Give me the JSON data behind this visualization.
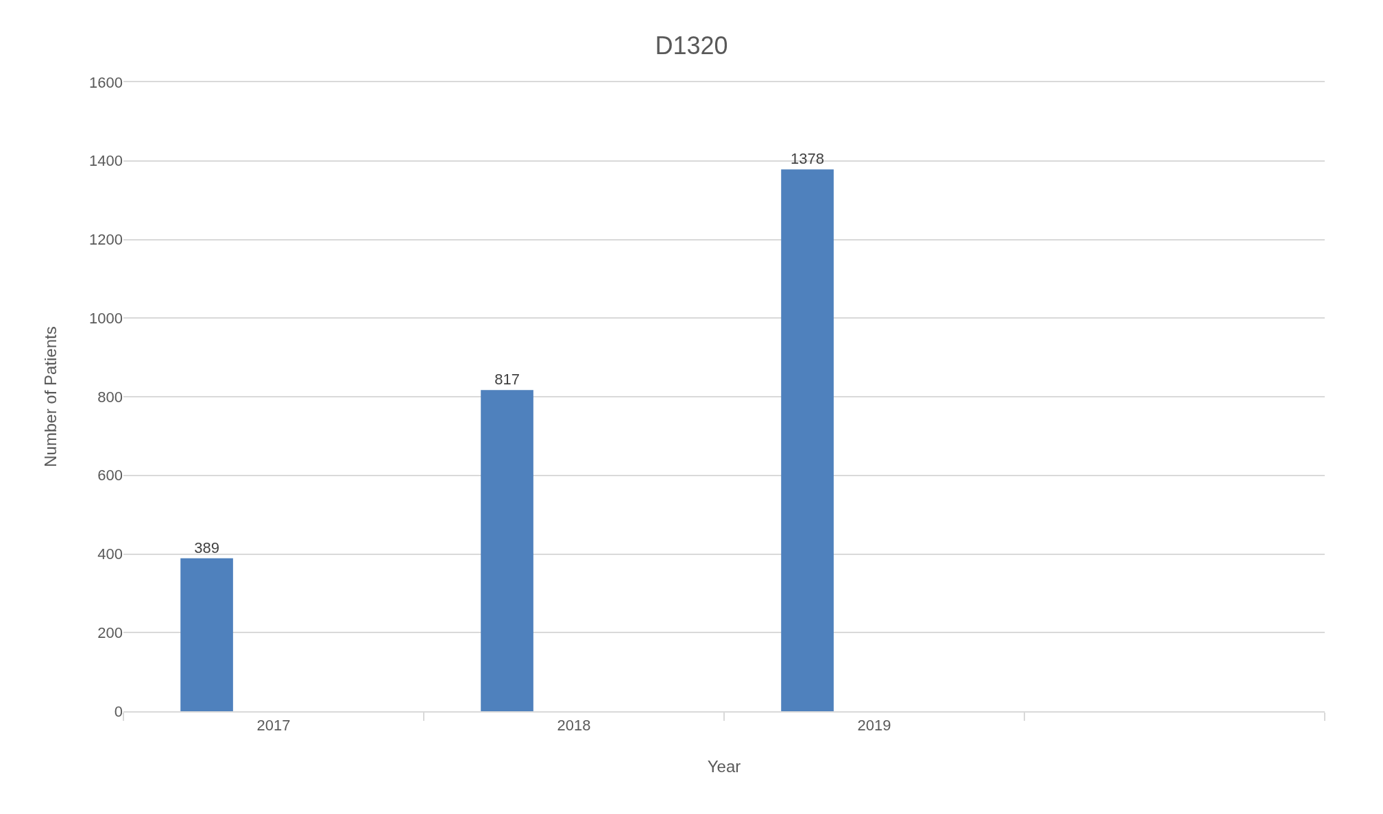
{
  "chart_data": {
    "type": "bar",
    "title": "D1320",
    "xlabel": "Year",
    "ylabel": "Number of Patients",
    "categories": [
      "2017",
      "2018",
      "2019",
      null
    ],
    "values": [
      389,
      817,
      1378,
      null
    ],
    "color": "#4f81bd",
    "ylim": [
      0,
      1600
    ],
    "yticks": [
      0,
      200,
      400,
      600,
      800,
      1000,
      1200,
      1400,
      1600
    ],
    "grid": "y",
    "data_labels": true
  }
}
